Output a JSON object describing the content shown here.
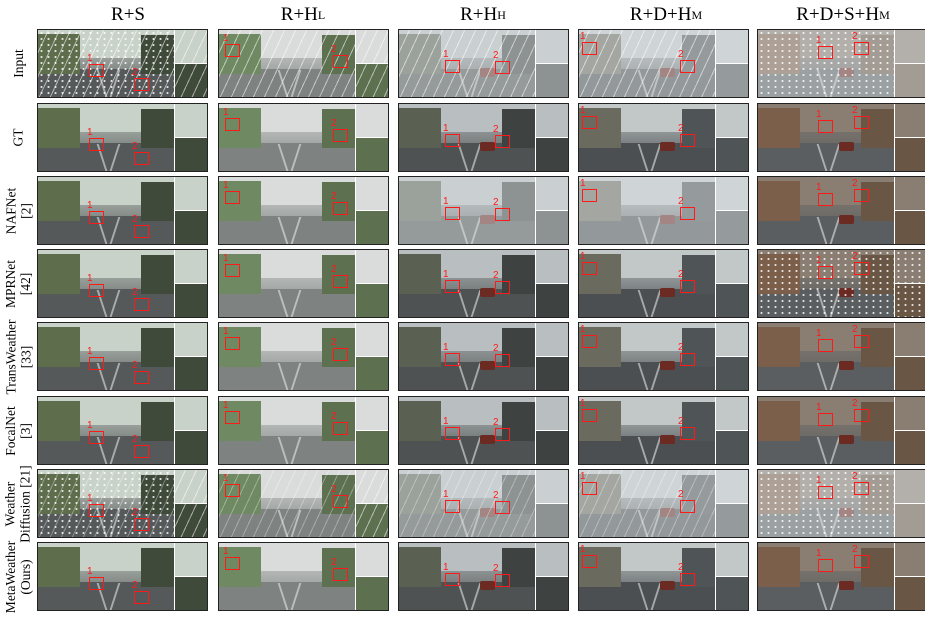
{
  "columns": [
    {
      "base": "R+S",
      "sub": ""
    },
    {
      "base": "R+H",
      "sub": "L"
    },
    {
      "base": "R+H",
      "sub": "H"
    },
    {
      "base": "R+D+H",
      "sub": "M"
    },
    {
      "base": "R+D+S+H",
      "sub": "M"
    }
  ],
  "rows": [
    {
      "lines": [
        "Input"
      ]
    },
    {
      "lines": [
        "GT"
      ]
    },
    {
      "lines": [
        "NAFNet",
        "[2]"
      ]
    },
    {
      "lines": [
        "MPRNet",
        "[42]"
      ]
    },
    {
      "lines": [
        "TransWeather",
        "[33]"
      ]
    },
    {
      "lines": [
        "FocalNet",
        "[3]"
      ]
    },
    {
      "lines": [
        "Weather",
        "Diffusion [21]"
      ]
    },
    {
      "lines": [
        "MetaWeather",
        "(Ours)"
      ]
    }
  ],
  "marker_labels": [
    "1",
    "2"
  ],
  "colors": {
    "marker": "#ff1a1a",
    "border": "#222222"
  }
}
